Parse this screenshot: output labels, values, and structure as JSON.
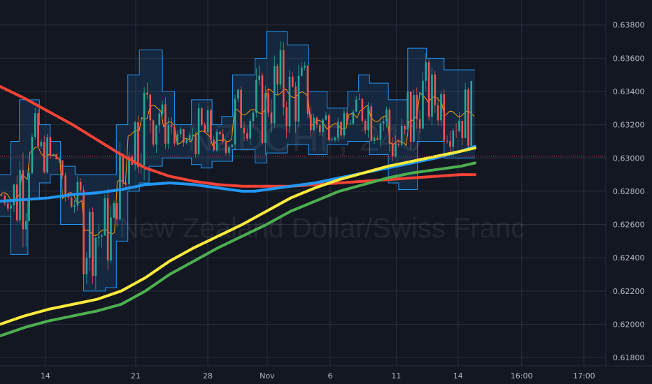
{
  "colors": {
    "background": "#131722",
    "grid": "#2a2e39",
    "axis_text": "#b2b5be",
    "last_price_line": "#f23645",
    "channel_line": "#2196f3",
    "channel_fill": "rgba(33,150,243,0.14)",
    "mid_line": "#ff9800",
    "ma_red": "#f44336",
    "ma_blue": "#2196f3",
    "ma_yellow": "#ffeb3b",
    "ma_green": "#4caf50",
    "candle_up": "#26a69a",
    "candle_down": "#ef5350"
  },
  "watermark": {
    "symbol": "NZDCHF, 240",
    "description": "New Zealand Dollar/Swiss Franc"
  },
  "chart_data": {
    "type": "line",
    "title": "",
    "xlabel": "",
    "ylabel": "",
    "ylim": [
      0.6175,
      0.6395
    ],
    "y_ticks": [
      0.638,
      0.636,
      0.634,
      0.632,
      0.63,
      0.628,
      0.626,
      0.624,
      0.622,
      0.62,
      0.618
    ],
    "y_tick_labels": [
      "0.63800",
      "0.63600",
      "0.63400",
      "0.63200",
      "0.63000",
      "0.62800",
      "0.62600",
      "0.62400",
      "0.62200",
      "0.62000",
      "0.61800"
    ],
    "x_range": [
      0,
      100
    ],
    "x_ticks": [
      {
        "label": "14",
        "x": 7.5
      },
      {
        "label": "21",
        "x": 22.4
      },
      {
        "label": "28",
        "x": 34.3
      },
      {
        "label": "Nov",
        "x": 44.1
      },
      {
        "label": "6",
        "x": 54.5
      },
      {
        "label": "11",
        "x": 65.4
      },
      {
        "label": "14",
        "x": 75.6
      },
      {
        "label": "16:00",
        "x": 86.1
      },
      {
        "label": "17:00",
        "x": 96.4
      }
    ],
    "last_price": 0.6301,
    "series": [
      {
        "key": "ma_red",
        "x": [
          0,
          4,
          8,
          12,
          16,
          20,
          24,
          28,
          32,
          36,
          40,
          44,
          48,
          52,
          56,
          60,
          64,
          68,
          72,
          76,
          78.4
        ],
        "values": [
          0.6343,
          0.6336,
          0.6328,
          0.632,
          0.6311,
          0.6302,
          0.6294,
          0.6289,
          0.6286,
          0.6284,
          0.6283,
          0.6283,
          0.6283,
          0.6284,
          0.6285,
          0.6286,
          0.6287,
          0.6288,
          0.6289,
          0.629,
          0.629
        ]
      },
      {
        "key": "ma_blue",
        "x": [
          0,
          4,
          8,
          12,
          16,
          20,
          24,
          28,
          32,
          36,
          40,
          42,
          44,
          48,
          52,
          56,
          60,
          64,
          68,
          72,
          76,
          78.4
        ],
        "values": [
          0.6274,
          0.6275,
          0.6276,
          0.6278,
          0.6279,
          0.6281,
          0.6284,
          0.6285,
          0.6284,
          0.6282,
          0.628,
          0.628,
          0.6281,
          0.6283,
          0.6285,
          0.6288,
          0.6291,
          0.6294,
          0.6297,
          0.63,
          0.6304,
          0.6307
        ]
      },
      {
        "key": "ma_yellow",
        "x": [
          0,
          4,
          8,
          12,
          16,
          20,
          24,
          28,
          32,
          36,
          40,
          44,
          48,
          52,
          56,
          60,
          64,
          68,
          72,
          76,
          78.4
        ],
        "values": [
          0.62,
          0.6205,
          0.6209,
          0.6212,
          0.6215,
          0.622,
          0.6228,
          0.6238,
          0.6246,
          0.6253,
          0.626,
          0.6268,
          0.6276,
          0.6282,
          0.6287,
          0.6291,
          0.6295,
          0.6298,
          0.6301,
          0.6304,
          0.6306
        ]
      },
      {
        "key": "ma_green",
        "x": [
          0,
          4,
          8,
          12,
          16,
          20,
          24,
          28,
          32,
          36,
          40,
          44,
          48,
          52,
          56,
          60,
          64,
          68,
          72,
          76,
          78.4
        ],
        "values": [
          0.6193,
          0.6198,
          0.6202,
          0.6205,
          0.6208,
          0.6212,
          0.622,
          0.623,
          0.6238,
          0.6246,
          0.6253,
          0.626,
          0.6268,
          0.6274,
          0.628,
          0.6284,
          0.6288,
          0.6291,
          0.6293,
          0.6295,
          0.6297
        ]
      }
    ],
    "channel": {
      "x": [
        0,
        1,
        1.8,
        3.2,
        4.6,
        6.5,
        8.3,
        10,
        12.4,
        13.8,
        15.6,
        17.4,
        19.2,
        21.1,
        23,
        24.6,
        26.8,
        28.8,
        30.2,
        31.6,
        33.2,
        35,
        36.6,
        38.4,
        40.3,
        42.1,
        44,
        45.5,
        47.4,
        49.2,
        50.9,
        52.6,
        54,
        55.7,
        57.4,
        59.2,
        61,
        62.6,
        64.1,
        65.8,
        67.3,
        68.9,
        70.4,
        71.9,
        73.3,
        74.9,
        76.4,
        78.4
      ],
      "upper": [
        0.629,
        0.629,
        0.631,
        0.6335,
        0.6335,
        0.632,
        0.631,
        0.6295,
        0.629,
        0.629,
        0.629,
        0.629,
        0.632,
        0.635,
        0.6365,
        0.6365,
        0.634,
        0.632,
        0.632,
        0.6335,
        0.6335,
        0.632,
        0.6325,
        0.635,
        0.635,
        0.636,
        0.6376,
        0.6376,
        0.6368,
        0.6368,
        0.634,
        0.634,
        0.633,
        0.633,
        0.634,
        0.635,
        0.6345,
        0.6345,
        0.6335,
        0.6335,
        0.6366,
        0.6366,
        0.636,
        0.636,
        0.6353,
        0.6353,
        0.6353,
        0.6353
      ],
      "lower": [
        0.6265,
        0.6265,
        0.6242,
        0.6242,
        0.6275,
        0.6285,
        0.629,
        0.626,
        0.626,
        0.622,
        0.622,
        0.6222,
        0.625,
        0.628,
        0.6285,
        0.6295,
        0.63,
        0.63,
        0.63,
        0.6296,
        0.6294,
        0.6298,
        0.6298,
        0.6305,
        0.6305,
        0.6297,
        0.6303,
        0.6303,
        0.6308,
        0.6308,
        0.6302,
        0.6302,
        0.6308,
        0.6308,
        0.631,
        0.631,
        0.6302,
        0.6302,
        0.6285,
        0.6281,
        0.6281,
        0.631,
        0.631,
        0.631,
        0.63,
        0.63,
        0.63,
        0.63
      ]
    }
  }
}
